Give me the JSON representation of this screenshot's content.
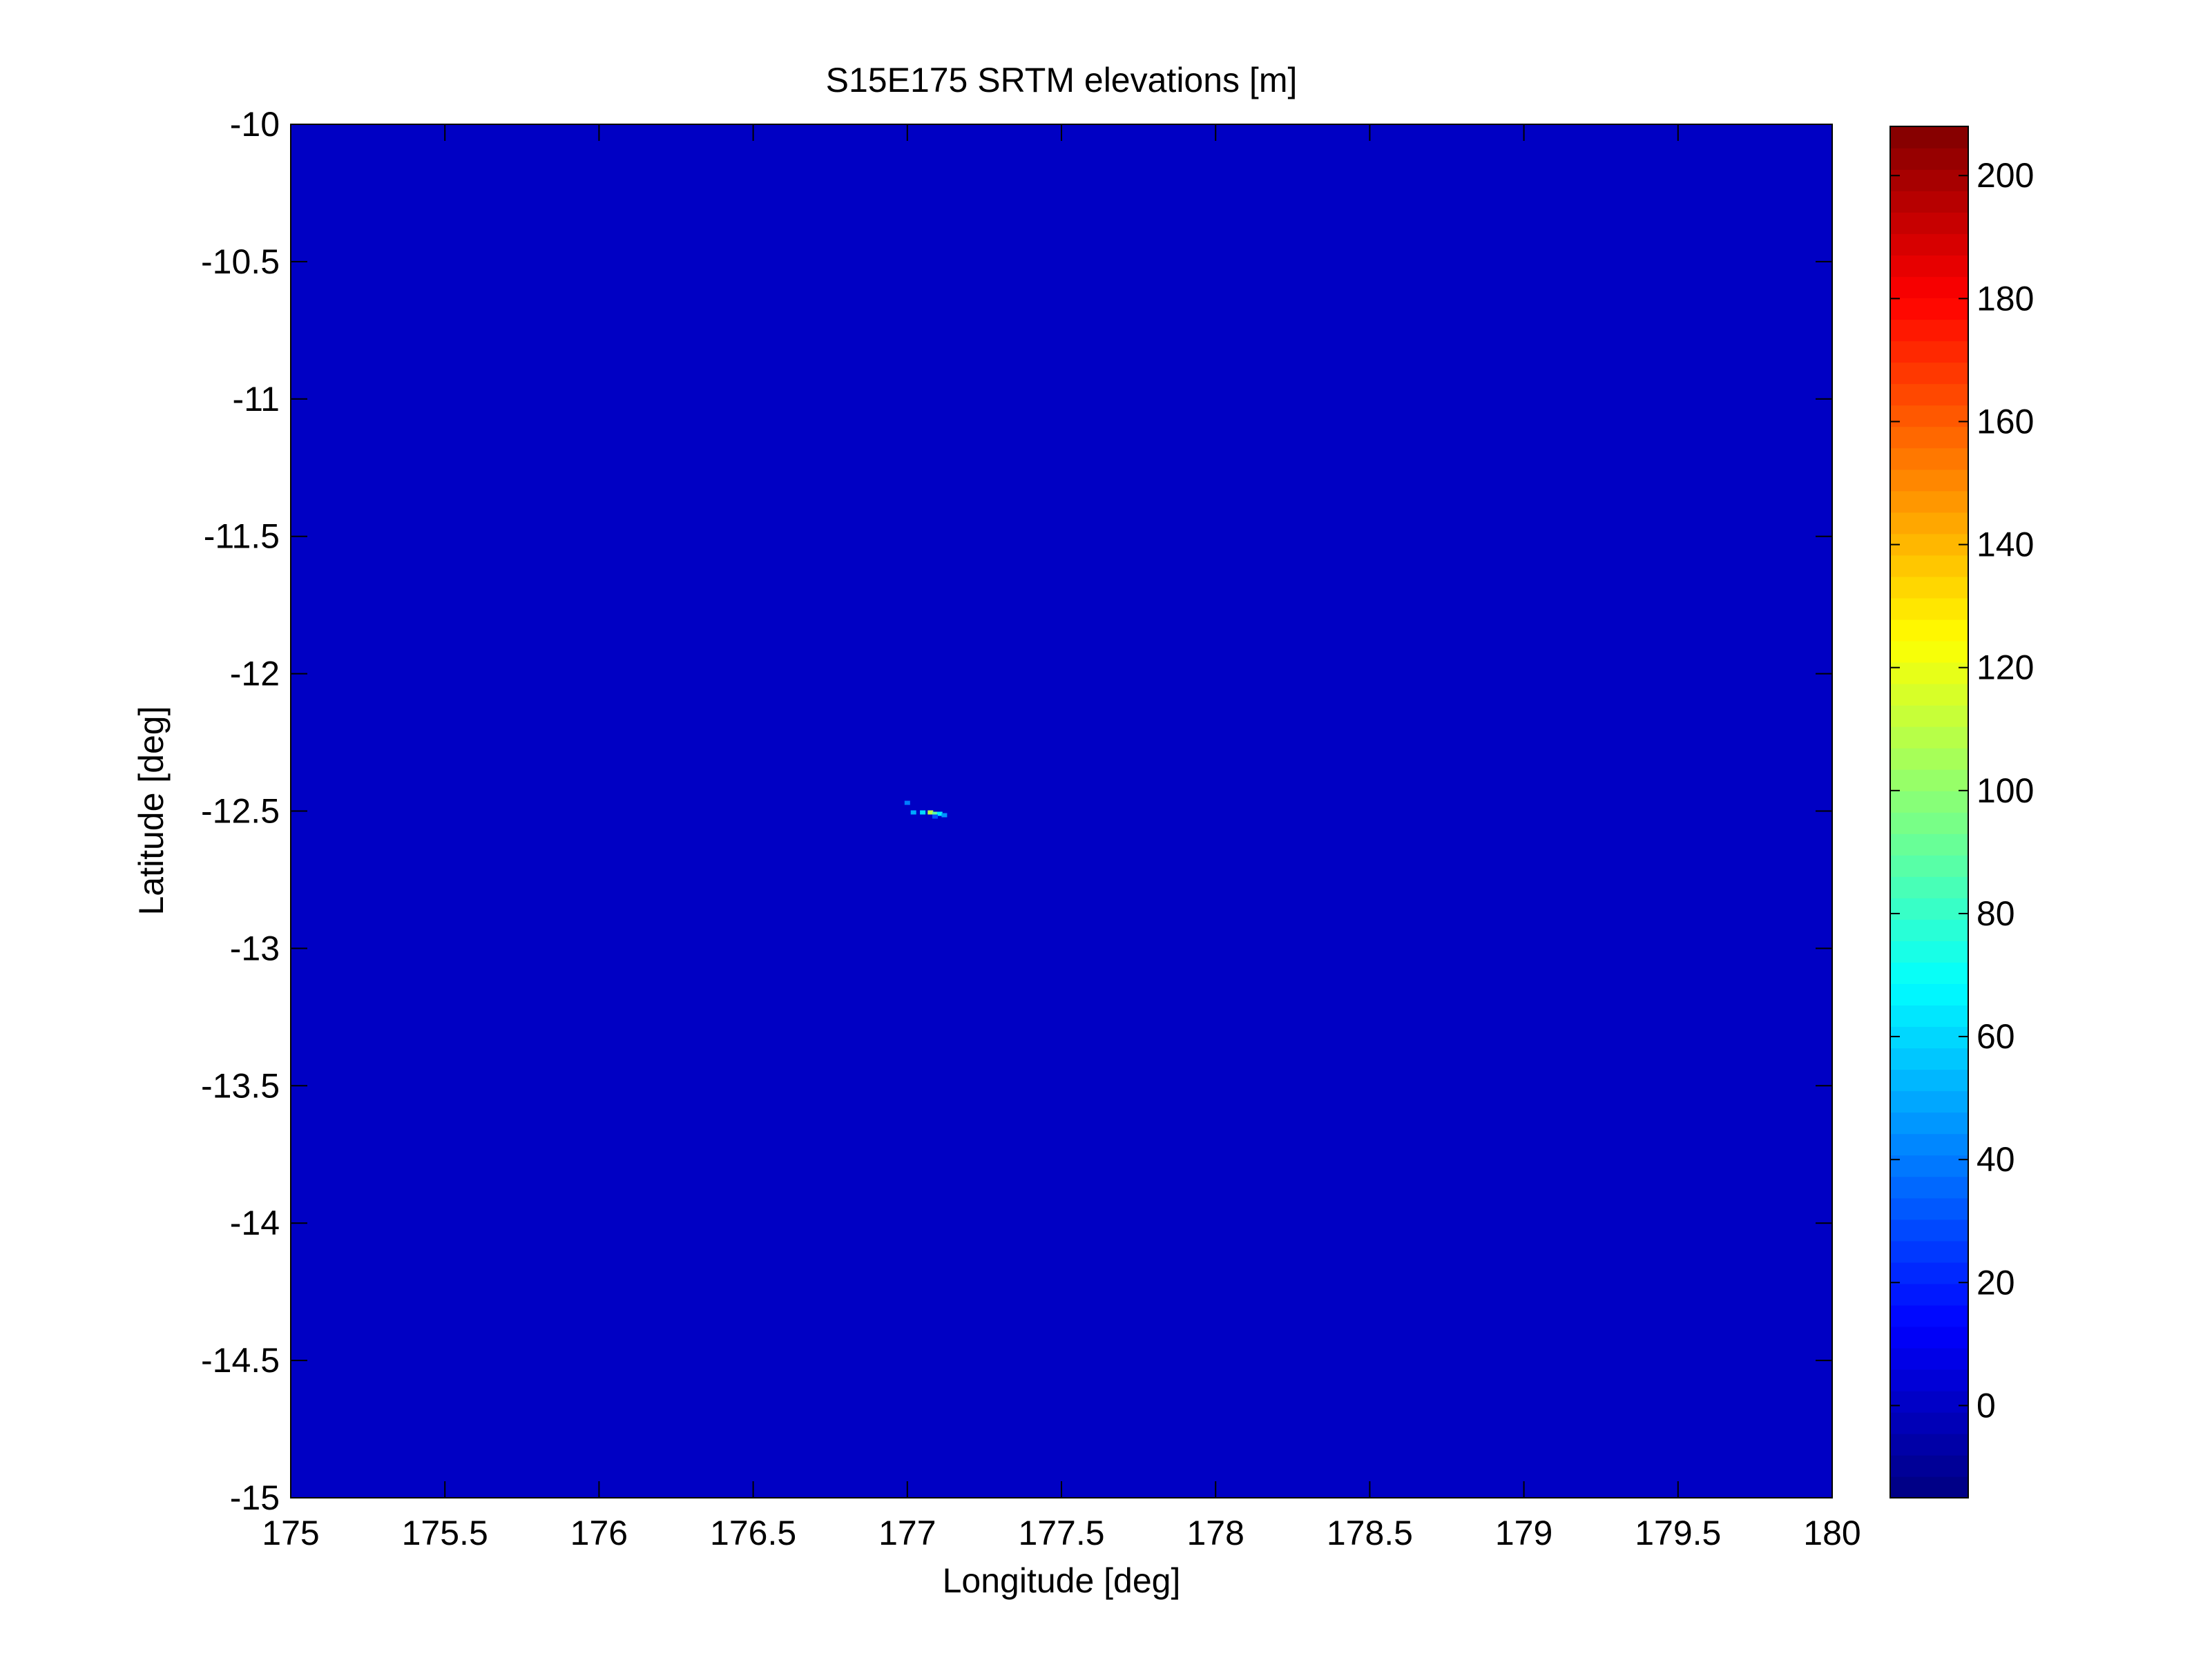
{
  "chart_data": {
    "type": "heatmap",
    "title": "S15E175 SRTM elevations [m]",
    "xlabel": "Longitude [deg]",
    "ylabel": "Latitude [deg]",
    "xlim": [
      175,
      180
    ],
    "ylim": [
      -15,
      -10
    ],
    "x_ticks": [
      175,
      175.5,
      176,
      176.5,
      177,
      177.5,
      178,
      178.5,
      179,
      179.5,
      180
    ],
    "x_tick_labels": [
      "175",
      "175.5",
      "176",
      "176.5",
      "177",
      "177.5",
      "178",
      "178.5",
      "179",
      "179.5",
      "180"
    ],
    "y_ticks": [
      -10,
      -10.5,
      -11,
      -11.5,
      -12,
      -12.5,
      -13,
      -13.5,
      -14,
      -14.5,
      -15
    ],
    "y_tick_labels": [
      "-10",
      "-10.5",
      "-11",
      "-11.5",
      "-12",
      "-12.5",
      "-13",
      "-13.5",
      "-14",
      "-14.5",
      "-15"
    ],
    "grid": false,
    "colormap": "jet",
    "background_value": 0,
    "colorbar": {
      "range": [
        -15,
        208
      ],
      "ticks": [
        0,
        20,
        40,
        60,
        80,
        100,
        120,
        140,
        160,
        180,
        200
      ],
      "tick_labels": [
        "0",
        "20",
        "40",
        "60",
        "80",
        "100",
        "120",
        "140",
        "160",
        "180",
        "200"
      ],
      "placement": "right"
    },
    "features": [
      {
        "lon": 177.0,
        "lat": -12.47,
        "elevation": 40
      },
      {
        "lon": 177.02,
        "lat": -12.505,
        "elevation": 50
      },
      {
        "lon": 177.05,
        "lat": -12.505,
        "elevation": 60
      },
      {
        "lon": 177.075,
        "lat": -12.505,
        "elevation": 110
      },
      {
        "lon": 177.09,
        "lat": -12.51,
        "elevation": 90
      },
      {
        "lon": 177.105,
        "lat": -12.51,
        "elevation": 65
      },
      {
        "lon": 177.12,
        "lat": -12.515,
        "elevation": 45
      },
      {
        "lon": 177.09,
        "lat": -12.52,
        "elevation": 30
      }
    ]
  }
}
